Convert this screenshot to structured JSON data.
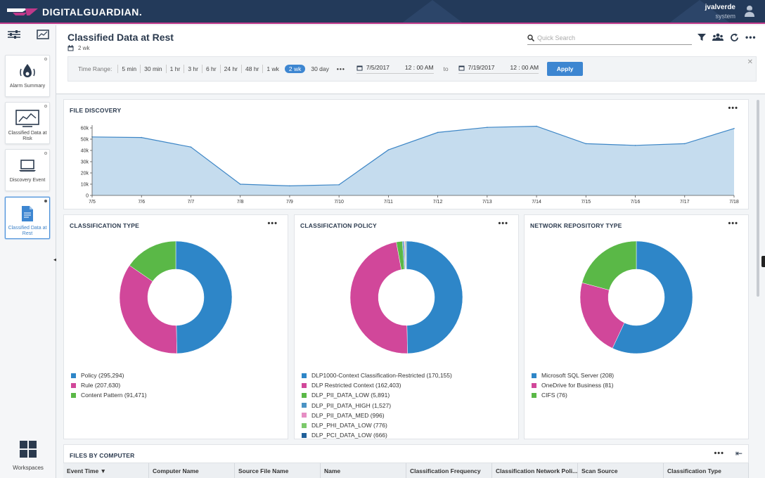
{
  "brand": {
    "name": "DIGITALGUARDIAN."
  },
  "user": {
    "name": "jvalverde",
    "role": "system"
  },
  "sidebar": {
    "items": [
      {
        "label": "Alarm Summary",
        "icon": "alarm-icon"
      },
      {
        "label": "Classified Data at Risk",
        "icon": "chart-monitor-icon"
      },
      {
        "label": "Discovery Event",
        "icon": "laptop-icon"
      },
      {
        "label": "Classified Data at Rest",
        "icon": "document-icon",
        "active": true
      }
    ],
    "workspaces_label": "Workspaces"
  },
  "header": {
    "title": "Classified Data at Rest",
    "range_label": "2 wk",
    "search_placeholder": "Quick Search"
  },
  "time_range": {
    "label": "Time Range:",
    "options": [
      "5 min",
      "30 min",
      "1 hr",
      "3 hr",
      "6 hr",
      "24 hr",
      "48 hr",
      "1 wk",
      "2 wk",
      "30 day"
    ],
    "selected": "2 wk",
    "more": "•••",
    "from_date": "7/5/2017",
    "from_time": "12 : 00  AM",
    "to_label": "to",
    "to_date": "7/19/2017",
    "to_time": "12 : 00  AM",
    "apply_label": "Apply",
    "close": "✕"
  },
  "panels": {
    "file_discovery": {
      "title": "FILE DISCOVERY",
      "menu": "•••"
    },
    "classification_type": {
      "title": "CLASSIFICATION TYPE",
      "menu": "•••"
    },
    "classification_policy": {
      "title": "CLASSIFICATION POLICY",
      "menu": "•••"
    },
    "network_repository": {
      "title": "NETWORK REPOSITORY TYPE",
      "menu": "•••"
    },
    "files_by_computer": {
      "title": "FILES BY COMPUTER",
      "menu": "•••",
      "collapse": "⇤",
      "columns": [
        "Event Time ▼",
        "Computer Name",
        "Source File Name",
        "Name",
        "Classification Frequency",
        "Classification Network Poli...",
        "Scan Source",
        "Classification Type"
      ]
    }
  },
  "chart_data": [
    {
      "type": "area",
      "title": "FILE DISCOVERY",
      "x": [
        "7/5",
        "7/6",
        "7/7",
        "7/8",
        "7/9",
        "7/10",
        "7/11",
        "7/12",
        "7/13",
        "7/14",
        "7/15",
        "7/16",
        "7/17",
        "7/18"
      ],
      "y_tick_labels": [
        "0",
        "10k",
        "20k",
        "30k",
        "40k",
        "50k",
        "60k"
      ],
      "series": [
        {
          "values": [
            52000,
            51500,
            43000,
            10000,
            8500,
            9500,
            40500,
            56000,
            60500,
            61500,
            46000,
            44500,
            46000,
            59500
          ]
        }
      ],
      "ylim": [
        0,
        60000
      ],
      "color": "#c5dcee",
      "line_color": "#3d86c6"
    },
    {
      "type": "pie",
      "title": "CLASSIFICATION TYPE",
      "slices": [
        {
          "label": "Policy (295,294)",
          "value": 295294,
          "color": "#2e86c8"
        },
        {
          "label": "Rule (207,630)",
          "value": 207630,
          "color": "#d1479a"
        },
        {
          "label": "Content Pattern (91,471)",
          "value": 91471,
          "color": "#5ab847"
        }
      ]
    },
    {
      "type": "pie",
      "title": "CLASSIFICATION POLICY",
      "slices": [
        {
          "label": "DLP1000-Context Classification-Restricted (170,155)",
          "value": 170155,
          "color": "#2e86c8"
        },
        {
          "label": "DLP Restricted Context (162,403)",
          "value": 162403,
          "color": "#d1479a"
        },
        {
          "label": "DLP_PII_DATA_LOW (5,891)",
          "value": 5891,
          "color": "#5ab847"
        },
        {
          "label": "DLP_PII_DATA_HIGH (1,527)",
          "value": 1527,
          "color": "#4b93c4"
        },
        {
          "label": "DLP_PII_DATA_MED (996)",
          "value": 996,
          "color": "#e68ec4"
        },
        {
          "label": "DLP_PHI_DATA_LOW (776)",
          "value": 776,
          "color": "#7cc96b"
        },
        {
          "label": "DLP_PCI_DATA_LOW (666)",
          "value": 666,
          "color": "#1f5f99"
        }
      ]
    },
    {
      "type": "pie",
      "title": "NETWORK REPOSITORY TYPE",
      "slices": [
        {
          "label": "Microsoft SQL Server (208)",
          "value": 208,
          "color": "#2e86c8"
        },
        {
          "label": "OneDrive for Business (81)",
          "value": 81,
          "color": "#d1479a"
        },
        {
          "label": "CIFS (76)",
          "value": 76,
          "color": "#5ab847"
        }
      ]
    }
  ]
}
